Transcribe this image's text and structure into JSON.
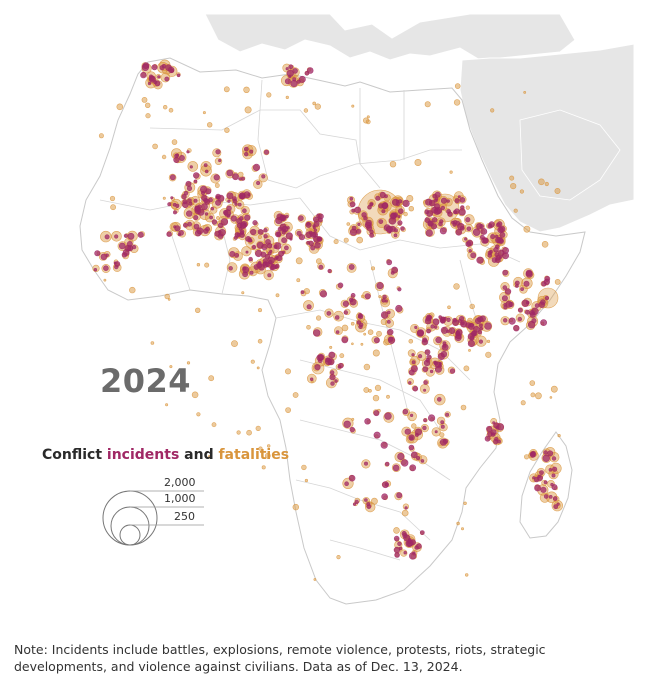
{
  "year": "2024",
  "legend": {
    "title_prefix": "Conflict ",
    "title_incidents": "incidents",
    "title_and": " and ",
    "title_fatalities": "fatalities",
    "scale_values": [
      "2,000",
      "1,000",
      "250"
    ]
  },
  "note": "Note: Incidents include battles, explosions, remote violence, protests, riots, strategic developments, and violence against civilians. Data as of Dec. 13, 2024.",
  "colors": {
    "incidents": "#a02865",
    "fatalities": "#d9953c",
    "land": "#ffffff",
    "other_land": "#e6e6e6",
    "border": "#cfcfcf"
  }
}
